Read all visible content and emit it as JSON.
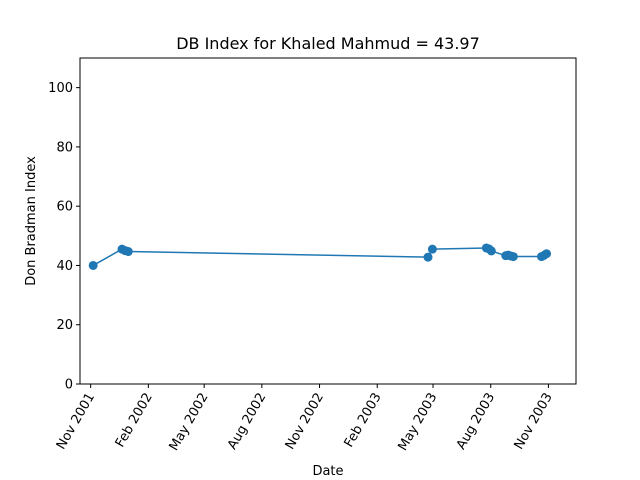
{
  "chart_data": {
    "type": "line",
    "title": "DB Index for Khaled Mahmud = 43.97",
    "xlabel": "Date",
    "ylabel": "Don Bradman Index",
    "ylim": [
      0,
      110
    ],
    "yticks": [
      0,
      20,
      40,
      60,
      80,
      100
    ],
    "xlim": [
      "2001-10-15",
      "2003-12-15"
    ],
    "xticks": [
      {
        "date": "2001-11-01",
        "label": "Nov 2001"
      },
      {
        "date": "2002-02-01",
        "label": "Feb 2002"
      },
      {
        "date": "2002-05-01",
        "label": "May 2002"
      },
      {
        "date": "2002-08-01",
        "label": "Aug 2002"
      },
      {
        "date": "2002-11-01",
        "label": "Nov 2002"
      },
      {
        "date": "2003-02-01",
        "label": "Feb 2003"
      },
      {
        "date": "2003-05-01",
        "label": "May 2003"
      },
      {
        "date": "2003-08-01",
        "label": "Aug 2003"
      },
      {
        "date": "2003-11-01",
        "label": "Nov 2003"
      }
    ],
    "grid": false,
    "color": "#1f77b4",
    "series": [
      {
        "points": [
          {
            "x": "2001-11-05",
            "y": 40.0
          },
          {
            "x": "2001-12-21",
            "y": 45.5
          },
          {
            "x": "2001-12-26",
            "y": 45.0
          },
          {
            "x": "2001-12-31",
            "y": 44.7
          },
          {
            "x": "2003-04-23",
            "y": 42.8
          },
          {
            "x": "2003-04-30",
            "y": 45.5
          },
          {
            "x": "2003-07-25",
            "y": 45.9
          },
          {
            "x": "2003-07-29",
            "y": 45.6
          },
          {
            "x": "2003-08-02",
            "y": 44.9
          },
          {
            "x": "2003-08-25",
            "y": 43.3
          },
          {
            "x": "2003-08-29",
            "y": 43.5
          },
          {
            "x": "2003-09-02",
            "y": 43.2
          },
          {
            "x": "2003-09-06",
            "y": 43.0
          },
          {
            "x": "2003-10-21",
            "y": 43.0
          },
          {
            "x": "2003-10-25",
            "y": 43.4
          },
          {
            "x": "2003-10-29",
            "y": 43.97
          }
        ]
      }
    ]
  }
}
